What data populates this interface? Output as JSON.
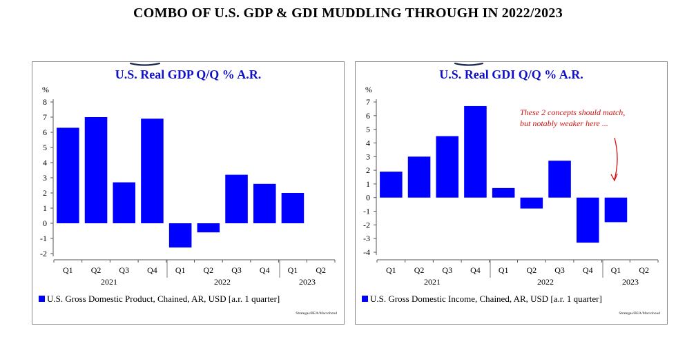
{
  "main_title": "COMBO OF U.S. GDP & GDI MUDDLING THROUGH IN 2022/2023",
  "colors": {
    "bar": "#0000ff",
    "title": "#1010c8",
    "annotation": "#d01010",
    "underline": "#1a2a55"
  },
  "panels": [
    {
      "title": "U.S. Real GDP Q/Q % A.R.",
      "legend": "U.S. Gross Domestic Product, Chained, AR, USD [a.r. 1 quarter]",
      "source": "Strategas/BEA/Macrobond"
    },
    {
      "title": "U.S. Real GDI Q/Q % A.R.",
      "legend": "U.S. Gross Domestic Income, Chained, AR, USD [a.r. 1 quarter]",
      "source": "Strategas/BEA/Macrobond",
      "annotation": [
        "These 2 concepts should match,",
        "but notably weaker here ..."
      ]
    }
  ],
  "chart_data": [
    {
      "type": "bar",
      "title": "U.S. Real GDP Q/Q % A.R.",
      "ylabel": "%",
      "ylim": [
        -2,
        8
      ],
      "yticks": [
        -2,
        -1,
        0,
        1,
        2,
        3,
        4,
        5,
        6,
        7,
        8
      ],
      "categories": [
        "Q1",
        "Q2",
        "Q3",
        "Q4",
        "Q1",
        "Q2",
        "Q3",
        "Q4",
        "Q1",
        "Q2"
      ],
      "year_labels": [
        "2021",
        "2022",
        "2023"
      ],
      "series": [
        {
          "name": "U.S. Gross Domestic Product, Chained, AR, USD [a.r. 1 quarter]",
          "values": [
            6.3,
            7.0,
            2.7,
            6.9,
            -1.6,
            -0.6,
            3.2,
            2.6,
            2.0,
            null
          ]
        }
      ],
      "grid": false
    },
    {
      "type": "bar",
      "title": "U.S. Real GDI Q/Q % A.R.",
      "ylabel": "%",
      "ylim": [
        -4,
        7
      ],
      "yticks": [
        -4,
        -3,
        -2,
        -1,
        0,
        1,
        2,
        3,
        4,
        5,
        6,
        7
      ],
      "categories": [
        "Q1",
        "Q2",
        "Q3",
        "Q4",
        "Q1",
        "Q2",
        "Q3",
        "Q4",
        "Q1",
        "Q2"
      ],
      "year_labels": [
        "2021",
        "2022",
        "2023"
      ],
      "series": [
        {
          "name": "U.S. Gross Domestic Income, Chained, AR, USD [a.r. 1 quarter]",
          "values": [
            1.9,
            3.0,
            4.5,
            6.7,
            0.7,
            -0.8,
            2.7,
            -3.3,
            -1.8,
            null
          ]
        }
      ],
      "grid": false
    }
  ]
}
